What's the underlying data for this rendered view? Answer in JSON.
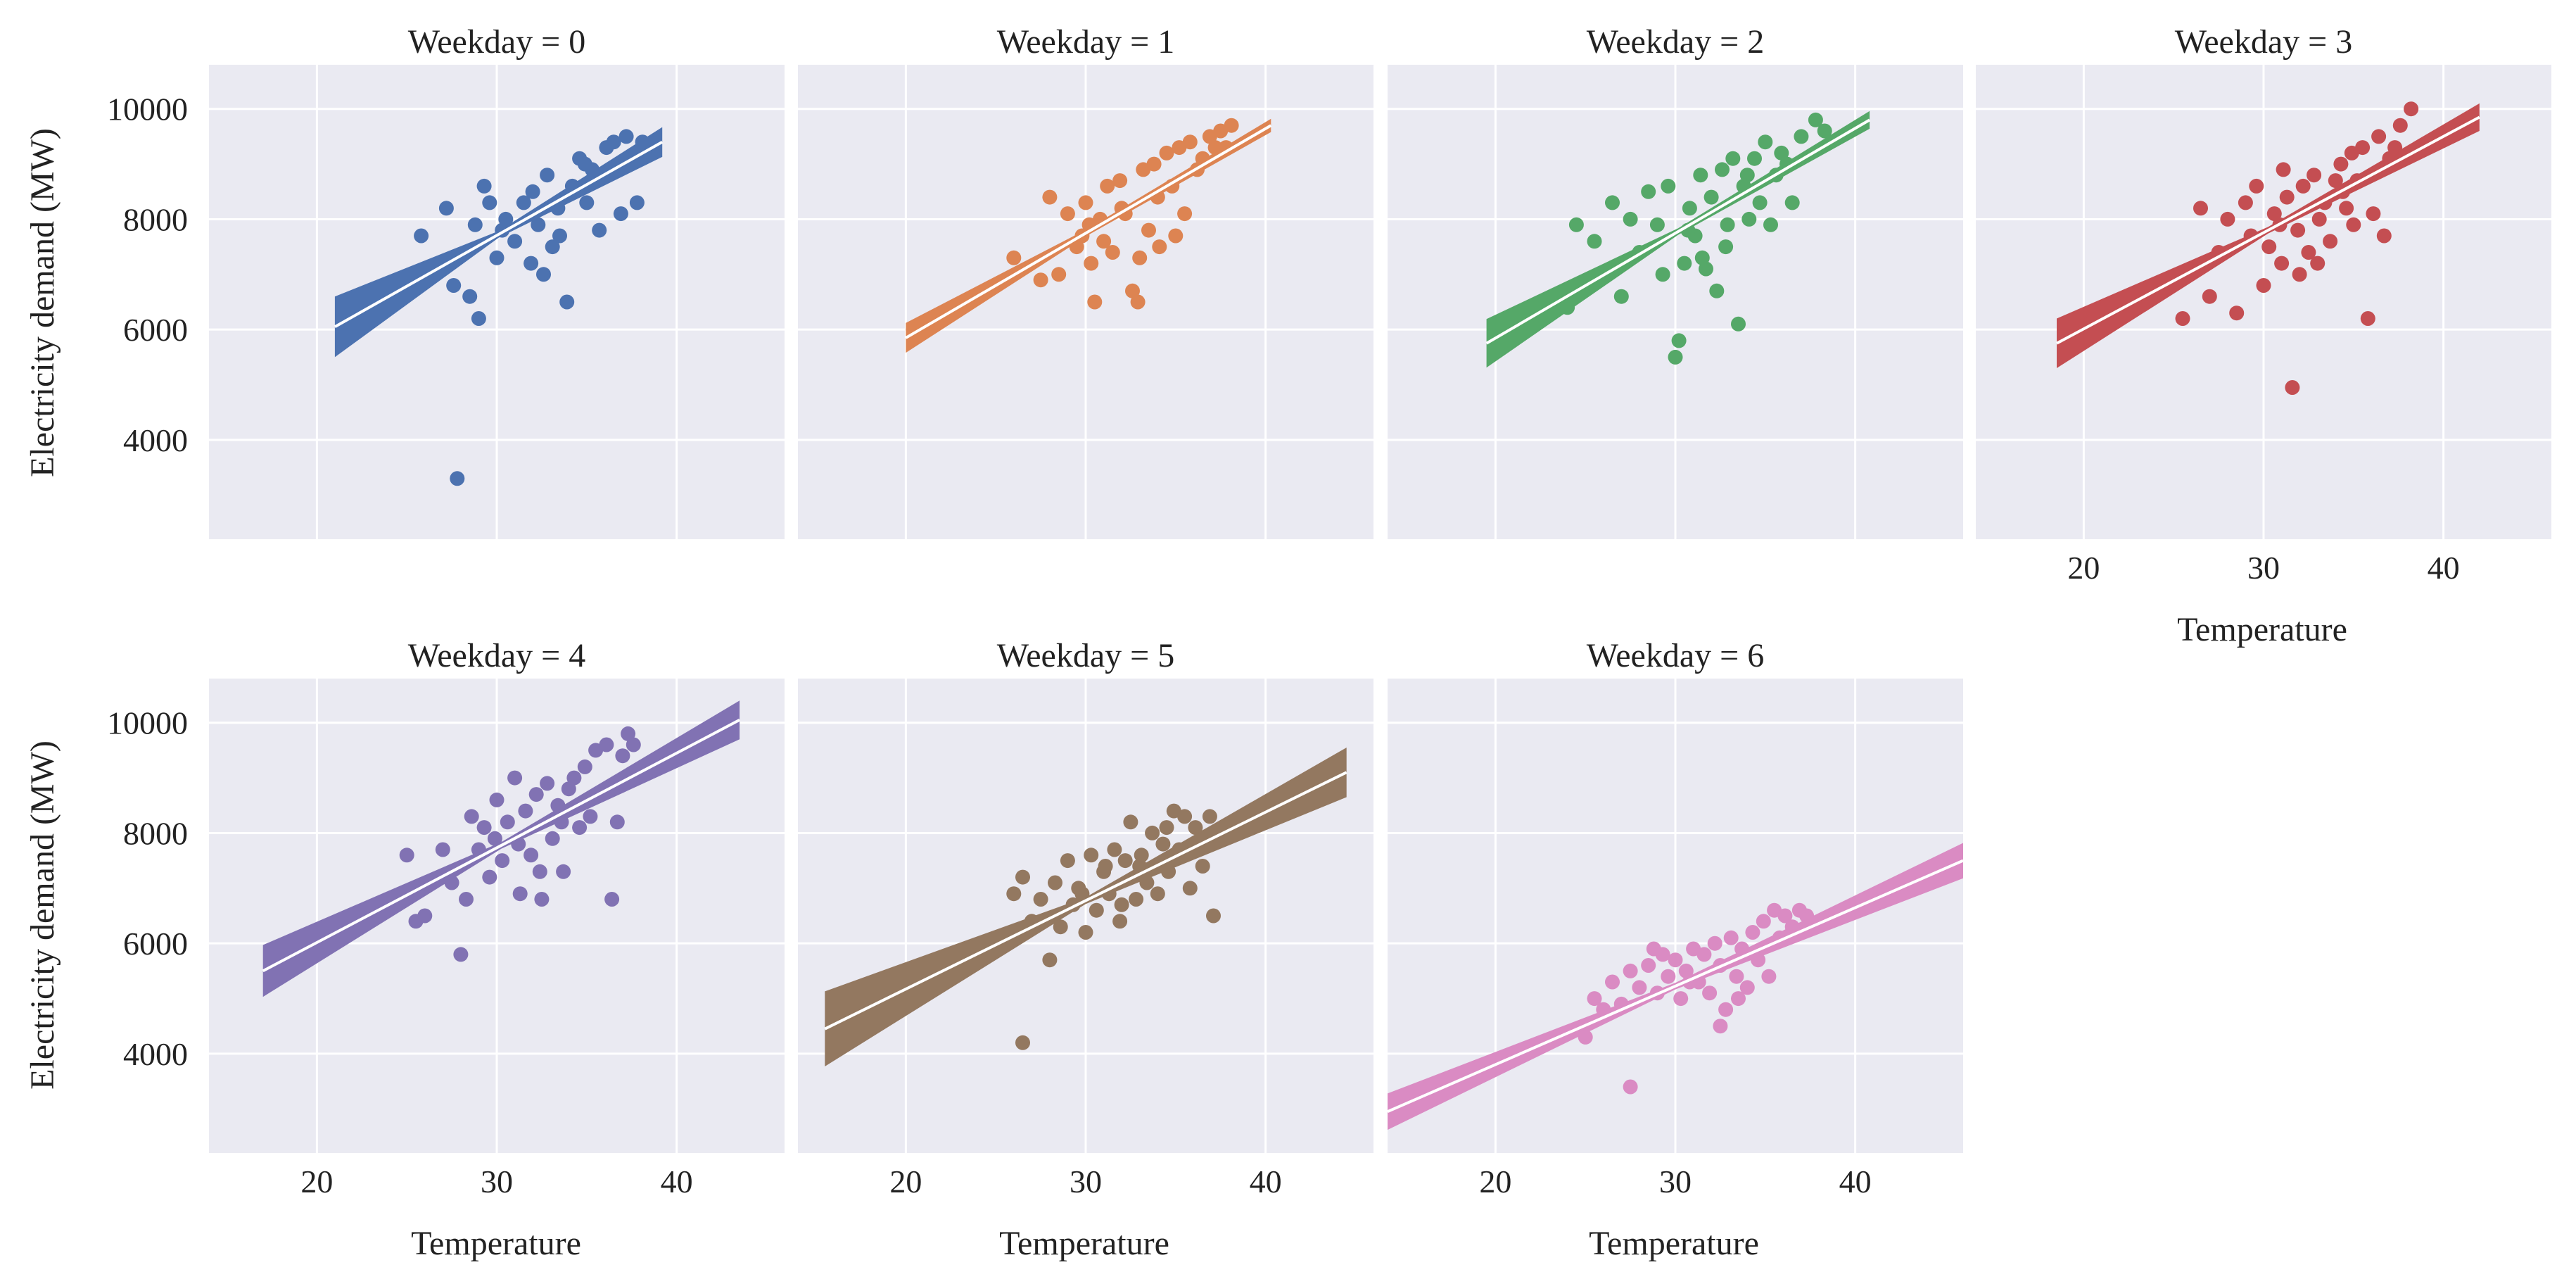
{
  "chart_data": {
    "type": "scatter",
    "layout": "facet-grid",
    "xlabel": "Temperature",
    "ylabel": "Electricity demand (MW)",
    "xlim": [
      14,
      46
    ],
    "ylim": [
      2200,
      10800
    ],
    "xticks": [
      20,
      30,
      40
    ],
    "yticks": [
      4000,
      6000,
      8000,
      10000
    ],
    "panels": [
      {
        "title": "Weekday = 0",
        "color": "#4C72B0",
        "fit": {
          "x0": 21,
          "y0": 6050,
          "x1": 39.2,
          "y1": 9400,
          "ci0": 550,
          "ci1": 270
        },
        "points": [
          [
            27.8,
            3300
          ],
          [
            25.8,
            7700
          ],
          [
            27.2,
            8200
          ],
          [
            28.8,
            7900
          ],
          [
            29.3,
            8600
          ],
          [
            29.0,
            6200
          ],
          [
            28.5,
            6600
          ],
          [
            27.6,
            6800
          ],
          [
            30.0,
            7300
          ],
          [
            30.5,
            8000
          ],
          [
            31.0,
            7600
          ],
          [
            31.5,
            8300
          ],
          [
            32.0,
            8500
          ],
          [
            32.3,
            7900
          ],
          [
            32.8,
            8800
          ],
          [
            33.1,
            7500
          ],
          [
            33.4,
            8200
          ],
          [
            33.9,
            6500
          ],
          [
            34.2,
            8600
          ],
          [
            34.6,
            9100
          ],
          [
            35.0,
            8300
          ],
          [
            35.3,
            8900
          ],
          [
            35.7,
            7800
          ],
          [
            36.1,
            9300
          ],
          [
            36.5,
            9400
          ],
          [
            36.9,
            8100
          ],
          [
            37.2,
            9500
          ],
          [
            37.8,
            8300
          ],
          [
            38.1,
            9400
          ],
          [
            31.9,
            7200
          ],
          [
            32.6,
            7000
          ],
          [
            33.5,
            7700
          ],
          [
            34.9,
            9000
          ],
          [
            30.3,
            7800
          ],
          [
            29.6,
            8300
          ]
        ]
      },
      {
        "title": "Weekday = 1",
        "color": "#DD8452",
        "fit": {
          "x0": 20,
          "y0": 5850,
          "x1": 40.3,
          "y1": 9700,
          "ci0": 270,
          "ci1": 120
        },
        "points": [
          [
            26.0,
            7300
          ],
          [
            27.5,
            6900
          ],
          [
            28.0,
            8400
          ],
          [
            28.5,
            7000
          ],
          [
            29.0,
            8100
          ],
          [
            29.5,
            7500
          ],
          [
            30.0,
            8300
          ],
          [
            30.3,
            7200
          ],
          [
            30.5,
            6500
          ],
          [
            30.8,
            8000
          ],
          [
            31.2,
            8600
          ],
          [
            31.5,
            7400
          ],
          [
            31.9,
            8700
          ],
          [
            32.2,
            8100
          ],
          [
            32.6,
            6700
          ],
          [
            32.9,
            6500
          ],
          [
            33.2,
            8900
          ],
          [
            33.5,
            7800
          ],
          [
            33.8,
            9000
          ],
          [
            34.1,
            7500
          ],
          [
            34.5,
            9200
          ],
          [
            34.8,
            8600
          ],
          [
            35.2,
            9300
          ],
          [
            35.5,
            8100
          ],
          [
            35.8,
            9400
          ],
          [
            36.2,
            8900
          ],
          [
            36.5,
            9100
          ],
          [
            36.9,
            9500
          ],
          [
            37.2,
            9300
          ],
          [
            37.5,
            9600
          ],
          [
            37.8,
            9300
          ],
          [
            38.1,
            9700
          ],
          [
            31.0,
            7600
          ],
          [
            32.0,
            8200
          ],
          [
            33.0,
            7300
          ],
          [
            34.0,
            8400
          ],
          [
            35.0,
            7700
          ],
          [
            30.2,
            7900
          ],
          [
            29.8,
            7700
          ]
        ]
      },
      {
        "title": "Weekday = 2",
        "color": "#55A868",
        "fit": {
          "x0": 19.5,
          "y0": 5750,
          "x1": 40.8,
          "y1": 9800,
          "ci0": 440,
          "ci1": 160
        },
        "points": [
          [
            24.0,
            6400
          ],
          [
            24.5,
            7900
          ],
          [
            25.5,
            7600
          ],
          [
            26.5,
            8300
          ],
          [
            27.0,
            6600
          ],
          [
            27.5,
            8000
          ],
          [
            28.0,
            7400
          ],
          [
            28.5,
            8500
          ],
          [
            29.0,
            7900
          ],
          [
            29.3,
            7000
          ],
          [
            29.6,
            8600
          ],
          [
            30.0,
            5500
          ],
          [
            30.2,
            5800
          ],
          [
            30.5,
            7200
          ],
          [
            30.8,
            8200
          ],
          [
            31.1,
            7700
          ],
          [
            31.4,
            8800
          ],
          [
            31.7,
            7100
          ],
          [
            32.0,
            8400
          ],
          [
            32.3,
            6700
          ],
          [
            32.6,
            8900
          ],
          [
            32.9,
            7900
          ],
          [
            33.2,
            9100
          ],
          [
            33.5,
            6100
          ],
          [
            33.8,
            8600
          ],
          [
            34.1,
            8000
          ],
          [
            34.4,
            9100
          ],
          [
            34.7,
            8300
          ],
          [
            35.0,
            9400
          ],
          [
            35.3,
            7900
          ],
          [
            35.6,
            8800
          ],
          [
            35.9,
            9200
          ],
          [
            36.2,
            9000
          ],
          [
            36.5,
            8300
          ],
          [
            37.0,
            9500
          ],
          [
            37.8,
            9800
          ],
          [
            38.3,
            9600
          ],
          [
            31.5,
            7300
          ],
          [
            32.8,
            7500
          ],
          [
            34.0,
            8800
          ],
          [
            30.7,
            7800
          ]
        ]
      },
      {
        "title": "Weekday = 3",
        "color": "#C44E52",
        "fit": {
          "x0": 18.5,
          "y0": 5750,
          "x1": 42,
          "y1": 9850,
          "ci0": 450,
          "ci1": 250
        },
        "points": [
          [
            25.5,
            6200
          ],
          [
            26.5,
            8200
          ],
          [
            27.0,
            6600
          ],
          [
            27.5,
            7400
          ],
          [
            28.0,
            8000
          ],
          [
            28.5,
            6300
          ],
          [
            29.0,
            8300
          ],
          [
            29.3,
            7700
          ],
          [
            29.6,
            8600
          ],
          [
            30.0,
            6800
          ],
          [
            30.3,
            7500
          ],
          [
            30.6,
            8100
          ],
          [
            31.0,
            7200
          ],
          [
            31.3,
            8400
          ],
          [
            31.6,
            4950
          ],
          [
            31.9,
            7800
          ],
          [
            32.2,
            8600
          ],
          [
            32.5,
            7400
          ],
          [
            32.8,
            8800
          ],
          [
            33.1,
            8000
          ],
          [
            33.4,
            8300
          ],
          [
            33.7,
            7600
          ],
          [
            34.0,
            8700
          ],
          [
            34.3,
            9000
          ],
          [
            34.6,
            8200
          ],
          [
            34.9,
            9200
          ],
          [
            35.2,
            8700
          ],
          [
            35.5,
            9300
          ],
          [
            35.8,
            6200
          ],
          [
            36.1,
            8100
          ],
          [
            36.4,
            9500
          ],
          [
            36.7,
            7700
          ],
          [
            37.0,
            9100
          ],
          [
            37.3,
            9300
          ],
          [
            37.6,
            9700
          ],
          [
            38.2,
            10000
          ],
          [
            32.0,
            7000
          ],
          [
            33.0,
            7200
          ],
          [
            34.4,
            8500
          ],
          [
            35.0,
            7900
          ],
          [
            31.1,
            8900
          ],
          [
            30.9,
            7900
          ]
        ]
      },
      {
        "title": "Weekday = 4",
        "color": "#8172B3",
        "fit": {
          "x0": 17,
          "y0": 5500,
          "x1": 43.5,
          "y1": 10050,
          "ci0": 470,
          "ci1": 350
        },
        "points": [
          [
            25.0,
            7600
          ],
          [
            25.5,
            6400
          ],
          [
            26.0,
            6500
          ],
          [
            27.0,
            7700
          ],
          [
            27.5,
            7100
          ],
          [
            28.0,
            5800
          ],
          [
            28.3,
            6800
          ],
          [
            28.6,
            8300
          ],
          [
            29.0,
            7700
          ],
          [
            29.3,
            8100
          ],
          [
            29.6,
            7200
          ],
          [
            30.0,
            8600
          ],
          [
            30.3,
            7500
          ],
          [
            30.6,
            8200
          ],
          [
            31.0,
            9000
          ],
          [
            31.3,
            6900
          ],
          [
            31.6,
            8400
          ],
          [
            31.9,
            7600
          ],
          [
            32.2,
            8700
          ],
          [
            32.5,
            6800
          ],
          [
            32.8,
            8900
          ],
          [
            33.1,
            7900
          ],
          [
            33.4,
            8500
          ],
          [
            33.7,
            7300
          ],
          [
            34.0,
            8800
          ],
          [
            34.3,
            9000
          ],
          [
            34.6,
            8100
          ],
          [
            34.9,
            9200
          ],
          [
            35.2,
            8300
          ],
          [
            35.5,
            9500
          ],
          [
            35.8,
            8700
          ],
          [
            36.1,
            9600
          ],
          [
            36.4,
            6800
          ],
          [
            36.7,
            8200
          ],
          [
            37.0,
            9400
          ],
          [
            37.3,
            9800
          ],
          [
            37.6,
            9600
          ],
          [
            31.2,
            7800
          ],
          [
            32.4,
            7300
          ],
          [
            33.6,
            8200
          ],
          [
            29.9,
            7900
          ]
        ]
      },
      {
        "title": "Weekday = 5",
        "color": "#937860",
        "fit": {
          "x0": 15.5,
          "y0": 4450,
          "x1": 44.5,
          "y1": 9100,
          "ci0": 680,
          "ci1": 450
        },
        "points": [
          [
            26.5,
            4200
          ],
          [
            26.0,
            6900
          ],
          [
            26.5,
            7200
          ],
          [
            27.0,
            6400
          ],
          [
            27.5,
            6800
          ],
          [
            28.0,
            5700
          ],
          [
            28.3,
            7100
          ],
          [
            28.6,
            6300
          ],
          [
            29.0,
            7500
          ],
          [
            29.3,
            6700
          ],
          [
            29.6,
            7000
          ],
          [
            30.0,
            6200
          ],
          [
            30.3,
            7600
          ],
          [
            30.6,
            6600
          ],
          [
            31.0,
            7300
          ],
          [
            31.3,
            6900
          ],
          [
            31.6,
            7700
          ],
          [
            31.9,
            6400
          ],
          [
            32.2,
            7500
          ],
          [
            32.5,
            8200
          ],
          [
            32.8,
            6800
          ],
          [
            33.1,
            7600
          ],
          [
            33.4,
            7100
          ],
          [
            33.7,
            8000
          ],
          [
            34.0,
            6900
          ],
          [
            34.3,
            7800
          ],
          [
            34.6,
            7300
          ],
          [
            34.9,
            8400
          ],
          [
            35.2,
            7700
          ],
          [
            35.5,
            8300
          ],
          [
            35.8,
            7000
          ],
          [
            36.1,
            8100
          ],
          [
            36.5,
            7400
          ],
          [
            36.9,
            8300
          ],
          [
            37.1,
            6500
          ],
          [
            31.1,
            7400
          ],
          [
            32.0,
            6700
          ],
          [
            33.0,
            7400
          ],
          [
            34.5,
            8100
          ],
          [
            29.8,
            6900
          ]
        ]
      },
      {
        "title": "Weekday = 6",
        "color": "#DA8BC3",
        "fit": {
          "x0": 14,
          "y0": 2950,
          "x1": 46,
          "y1": 7500,
          "ci0": 330,
          "ci1": 320
        },
        "points": [
          [
            27.5,
            3400
          ],
          [
            25.0,
            4300
          ],
          [
            25.5,
            5000
          ],
          [
            26.0,
            4800
          ],
          [
            26.5,
            5300
          ],
          [
            27.0,
            4900
          ],
          [
            27.5,
            5500
          ],
          [
            28.0,
            5200
          ],
          [
            28.5,
            5600
          ],
          [
            29.0,
            5100
          ],
          [
            29.3,
            5800
          ],
          [
            29.6,
            5400
          ],
          [
            30.0,
            5700
          ],
          [
            30.3,
            5000
          ],
          [
            30.6,
            5500
          ],
          [
            31.0,
            5900
          ],
          [
            31.3,
            5300
          ],
          [
            31.6,
            5800
          ],
          [
            31.9,
            5100
          ],
          [
            32.2,
            6000
          ],
          [
            32.5,
            5600
          ],
          [
            32.8,
            4800
          ],
          [
            33.1,
            6100
          ],
          [
            33.4,
            5400
          ],
          [
            33.7,
            5900
          ],
          [
            34.0,
            5200
          ],
          [
            34.3,
            6200
          ],
          [
            34.6,
            5700
          ],
          [
            34.9,
            6400
          ],
          [
            35.2,
            5400
          ],
          [
            35.5,
            6600
          ],
          [
            35.8,
            6100
          ],
          [
            36.1,
            6500
          ],
          [
            36.5,
            6300
          ],
          [
            36.9,
            6600
          ],
          [
            37.3,
            6500
          ],
          [
            32.5,
            4500
          ],
          [
            33.5,
            5000
          ],
          [
            30.8,
            5300
          ],
          [
            28.8,
            5900
          ]
        ]
      }
    ]
  }
}
